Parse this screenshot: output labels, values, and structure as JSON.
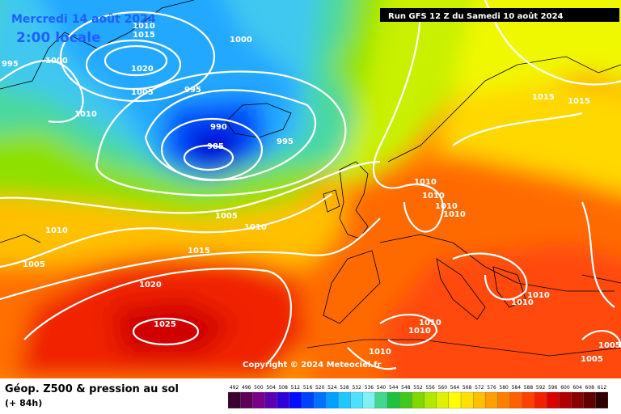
{
  "header": {
    "date_label": "Mercredi 14 août 2024",
    "time_label": "2:00 locale",
    "run_label": "Run GFS 12 Z du Samedi 10 août 2024"
  },
  "footer": {
    "title": "Géop. Z500 & pression au sol",
    "subtitle": "(+ 84h)",
    "copyright": "Copyright © 2024 Meteociel.fr"
  },
  "scale": {
    "labels": [
      "492",
      "496",
      "500",
      "504",
      "508",
      "512",
      "516",
      "520",
      "524",
      "528",
      "532",
      "536",
      "540",
      "544",
      "548",
      "552",
      "556",
      "560",
      "564",
      "568",
      "572",
      "576",
      "580",
      "584",
      "588",
      "592",
      "596",
      "600",
      "604",
      "608",
      "612"
    ],
    "colors": [
      "#3a0030",
      "#5c0058",
      "#7a0088",
      "#5a00b0",
      "#3000d8",
      "#0010ff",
      "#0040ff",
      "#0070ff",
      "#00a0ff",
      "#20c8ff",
      "#50e0ff",
      "#80f0f0",
      "#40d890",
      "#20c040",
      "#40c820",
      "#80d800",
      "#b0e800",
      "#e0f000",
      "#ffff00",
      "#ffe000",
      "#ffc000",
      "#ffa000",
      "#ff8000",
      "#ff6000",
      "#ff4000",
      "#f02000",
      "#d80000",
      "#b00000",
      "#880000",
      "#600000",
      "#300000"
    ]
  },
  "isobars": [
    {
      "label": "1010"
    },
    {
      "label": "1015"
    },
    {
      "label": "1020"
    },
    {
      "label": "1005"
    },
    {
      "label": "995"
    },
    {
      "label": "1000"
    },
    {
      "label": "1010"
    },
    {
      "label": "1000"
    },
    {
      "label": "995"
    },
    {
      "label": "990"
    },
    {
      "label": "985"
    },
    {
      "label": "995"
    },
    {
      "label": "1005"
    },
    {
      "label": "1010"
    },
    {
      "label": "1010"
    },
    {
      "label": "1005"
    },
    {
      "label": "1015"
    },
    {
      "label": "1020"
    },
    {
      "label": "1025"
    },
    {
      "label": "1015"
    },
    {
      "label": "1015"
    },
    {
      "label": "1010"
    },
    {
      "label": "1010"
    },
    {
      "label": "1010"
    },
    {
      "label": "1010"
    },
    {
      "label": "1010"
    },
    {
      "label": "1010"
    },
    {
      "label": "1010"
    },
    {
      "label": "1010"
    },
    {
      "label": "1010"
    },
    {
      "label": "1005"
    },
    {
      "label": "1005"
    }
  ]
}
